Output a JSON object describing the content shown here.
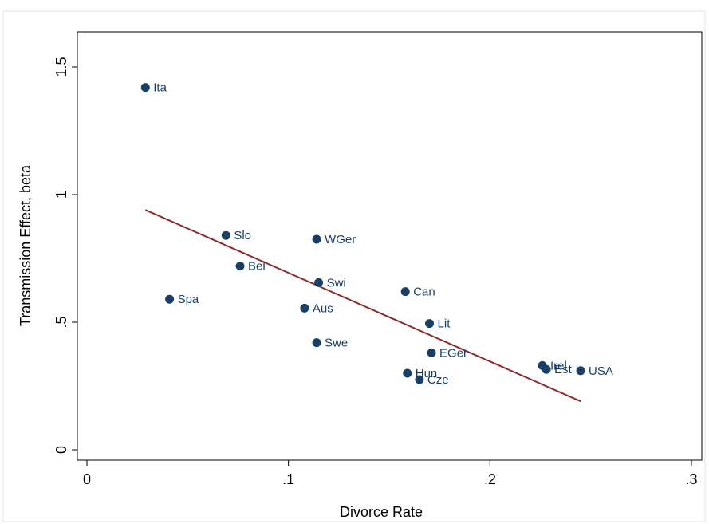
{
  "chart_data": {
    "type": "scatter",
    "title": "",
    "xlabel": "Divorce Rate",
    "ylabel": "Transmission Effect, beta",
    "xlim": [
      0,
      0.3
    ],
    "ylim": [
      0,
      1.5
    ],
    "x_ticks": [
      {
        "value": 0,
        "label": "0"
      },
      {
        "value": 0.1,
        "label": ".1"
      },
      {
        "value": 0.2,
        "label": ".2"
      },
      {
        "value": 0.3,
        "label": ".3"
      }
    ],
    "y_ticks": [
      {
        "value": 0,
        "label": "0"
      },
      {
        "value": 0.5,
        "label": ".5"
      },
      {
        "value": 1,
        "label": "1"
      },
      {
        "value": 1.5,
        "label": "1.5"
      }
    ],
    "grid": false,
    "legend": "none",
    "colors": {
      "points": "#1a3f66",
      "labels": "#1a3f66",
      "fit_line": "#8b2b2b"
    },
    "points": [
      {
        "label": "Ita",
        "x": 0.029,
        "y": 1.42
      },
      {
        "label": "Spa",
        "x": 0.041,
        "y": 0.59
      },
      {
        "label": "Slo",
        "x": 0.069,
        "y": 0.84
      },
      {
        "label": "Bel",
        "x": 0.076,
        "y": 0.72
      },
      {
        "label": "Aus",
        "x": 0.108,
        "y": 0.555
      },
      {
        "label": "WGer",
        "x": 0.114,
        "y": 0.825
      },
      {
        "label": "Swe",
        "x": 0.114,
        "y": 0.42
      },
      {
        "label": "Swi",
        "x": 0.115,
        "y": 0.655
      },
      {
        "label": "Can",
        "x": 0.158,
        "y": 0.62
      },
      {
        "label": "Hun",
        "x": 0.159,
        "y": 0.3
      },
      {
        "label": "Cze",
        "x": 0.165,
        "y": 0.275
      },
      {
        "label": "Lit",
        "x": 0.17,
        "y": 0.495
      },
      {
        "label": "EGer",
        "x": 0.171,
        "y": 0.38
      },
      {
        "label": "Irel",
        "x": 0.226,
        "y": 0.33
      },
      {
        "label": "Est",
        "x": 0.228,
        "y": 0.315
      },
      {
        "label": "USA",
        "x": 0.245,
        "y": 0.31
      }
    ],
    "fit_line": {
      "x": [
        0.029,
        0.245
      ],
      "y": [
        0.94,
        0.19
      ]
    }
  }
}
